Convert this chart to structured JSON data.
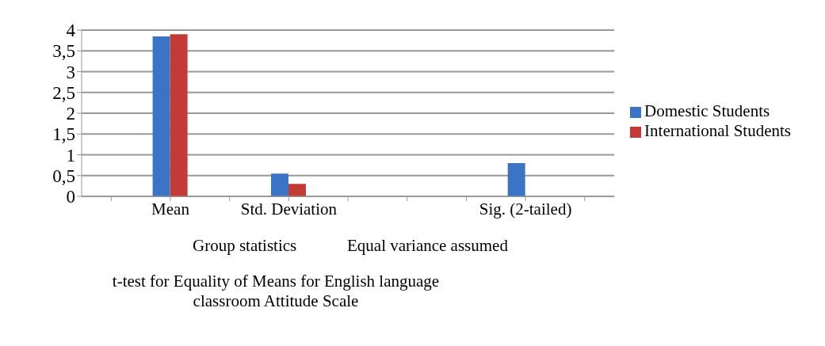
{
  "chart_data": {
    "type": "bar",
    "categories": [
      null,
      "Mean",
      null,
      "Std. Deviation",
      null,
      null,
      null,
      "Sig. (2-tailed)",
      null
    ],
    "series": [
      {
        "name": "Domestic Students",
        "color": "#3b74c6",
        "values": [
          null,
          3.85,
          null,
          0.55,
          null,
          null,
          null,
          0.8,
          null
        ]
      },
      {
        "name": "International Students",
        "color": "#c43a36",
        "values": [
          null,
          3.9,
          null,
          0.3,
          null,
          null,
          null,
          null,
          null
        ]
      }
    ],
    "ylim": [
      0,
      4
    ],
    "yticks": [
      0,
      {
        "value": 0.5,
        "label": "0,5"
      },
      1,
      {
        "value": 1.5,
        "label": "1,5"
      },
      2,
      {
        "value": 2.5,
        "label": "2,5"
      },
      3,
      {
        "value": 3.5,
        "label": "3,5"
      },
      4
    ],
    "grid": "y",
    "legend": "right",
    "annotations": [
      "Group statistics",
      "Equal variance assumed",
      "t-test  for Equality of Means for English language classroom Attitude Scale"
    ]
  }
}
